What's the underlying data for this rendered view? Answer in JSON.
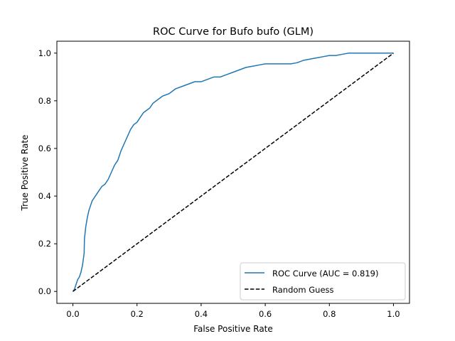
{
  "chart_data": {
    "type": "line",
    "title": "ROC Curve for Bufo bufo (GLM)",
    "xlabel": "False Positive Rate",
    "ylabel": "True Positive Rate",
    "xlim": [
      -0.05,
      1.05
    ],
    "ylim": [
      -0.05,
      1.05
    ],
    "xticks": [
      0.0,
      0.2,
      0.4,
      0.6,
      0.8,
      1.0
    ],
    "yticks": [
      0.0,
      0.2,
      0.4,
      0.6,
      0.8,
      1.0
    ],
    "xtick_labels": [
      "0.0",
      "0.2",
      "0.4",
      "0.6",
      "0.8",
      "1.0"
    ],
    "ytick_labels": [
      "0.0",
      "0.2",
      "0.4",
      "0.6",
      "0.8",
      "1.0"
    ],
    "grid": false,
    "legend_position": "bottom-right",
    "series": [
      {
        "name": "ROC Curve (AUC = 0.819)",
        "color": "#1f77b4",
        "style": "solid",
        "x": [
          0.0,
          0.005,
          0.01,
          0.015,
          0.02,
          0.025,
          0.03,
          0.035,
          0.036,
          0.04,
          0.045,
          0.05,
          0.06,
          0.065,
          0.07,
          0.08,
          0.09,
          0.1,
          0.11,
          0.12,
          0.13,
          0.14,
          0.15,
          0.16,
          0.17,
          0.18,
          0.19,
          0.2,
          0.21,
          0.22,
          0.23,
          0.24,
          0.25,
          0.26,
          0.28,
          0.3,
          0.32,
          0.34,
          0.36,
          0.38,
          0.4,
          0.42,
          0.44,
          0.46,
          0.48,
          0.5,
          0.52,
          0.54,
          0.56,
          0.58,
          0.6,
          0.62,
          0.64,
          0.66,
          0.68,
          0.7,
          0.72,
          0.74,
          0.76,
          0.78,
          0.8,
          0.82,
          0.84,
          0.86,
          0.88,
          0.9,
          0.92,
          0.94,
          0.96,
          0.98,
          1.0
        ],
        "y": [
          0.0,
          0.01,
          0.03,
          0.05,
          0.06,
          0.08,
          0.11,
          0.16,
          0.22,
          0.27,
          0.31,
          0.34,
          0.38,
          0.39,
          0.4,
          0.42,
          0.44,
          0.45,
          0.47,
          0.5,
          0.53,
          0.55,
          0.59,
          0.62,
          0.65,
          0.68,
          0.7,
          0.71,
          0.73,
          0.75,
          0.76,
          0.77,
          0.79,
          0.8,
          0.82,
          0.83,
          0.85,
          0.86,
          0.87,
          0.88,
          0.88,
          0.89,
          0.9,
          0.9,
          0.91,
          0.92,
          0.93,
          0.94,
          0.945,
          0.95,
          0.955,
          0.955,
          0.955,
          0.955,
          0.955,
          0.96,
          0.97,
          0.975,
          0.98,
          0.985,
          0.99,
          0.99,
          0.995,
          1.0,
          1.0,
          1.0,
          1.0,
          1.0,
          1.0,
          1.0,
          1.0
        ]
      },
      {
        "name": "Random Guess",
        "color": "#000000",
        "style": "dashed",
        "x": [
          0.0,
          1.0
        ],
        "y": [
          0.0,
          1.0
        ]
      }
    ]
  }
}
